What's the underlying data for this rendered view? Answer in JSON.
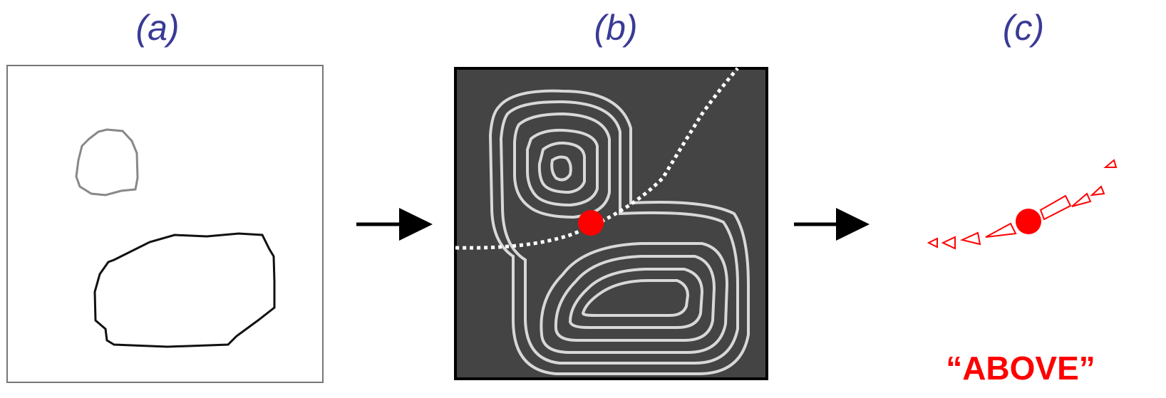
{
  "panels": [
    {
      "label": "(a)"
    },
    {
      "label": "(b)"
    },
    {
      "label": "(c)"
    }
  ],
  "result": "“ABOVE”"
}
